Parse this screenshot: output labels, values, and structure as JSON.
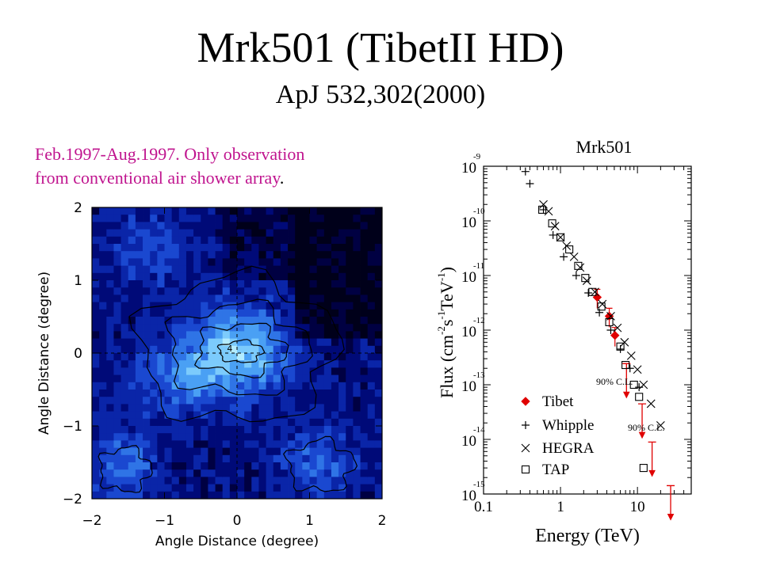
{
  "slide": {
    "title": "Mrk501 (TibetII HD)",
    "subtitle": "ApJ 532,302(2000)",
    "note_line1": "Feb.1997-Aug.1997.  Only observation",
    "note_line2": "from conventional air shower array",
    "note_period": "."
  },
  "colors": {
    "note_text": "#c0158f",
    "tibet": "#e00000",
    "map_low": "#000010",
    "map_high": "#a8f0ff"
  },
  "chart_data": [
    {
      "type": "heatmap",
      "title": "",
      "xlabel": "Angle Distance (degree)",
      "ylabel": "Angle Distance (degree)",
      "xlim": [
        -2,
        2
      ],
      "ylim": [
        -2,
        2
      ],
      "x_ticks": [
        "-2",
        "-1",
        "0",
        "1",
        "2"
      ],
      "y_ticks": [
        "2",
        "1",
        "0",
        "-1",
        "-2"
      ],
      "peak_label": "4",
      "description_of_values": "significance map centered at (0,0); contour levels 1-4"
    },
    {
      "type": "scatter",
      "title": "Mrk501",
      "xlabel": "Energy (TeV)",
      "ylabel_parts": [
        "Flux (cm",
        "-2",
        "s",
        "-1",
        "TeV",
        "-1",
        ")"
      ],
      "x_scale": "log",
      "y_scale": "log",
      "xlim": [
        0.1,
        50
      ],
      "ylim": [
        1e-15,
        1e-09
      ],
      "x_ticks": [
        "0.1",
        "1",
        "10"
      ],
      "y_ticks": [
        {
          "base": "10",
          "exp": "-9"
        },
        {
          "base": "10",
          "exp": "-10"
        },
        {
          "base": "10",
          "exp": "-11"
        },
        {
          "base": "10",
          "exp": "-12"
        },
        {
          "base": "10",
          "exp": "-13"
        },
        {
          "base": "10",
          "exp": "-14"
        },
        {
          "base": "10",
          "exp": "-15"
        }
      ],
      "annotations": [
        "90% C.L.",
        "90% C.L."
      ],
      "legend_position": "bottom-left",
      "series": [
        {
          "name": "Tibet",
          "marker": "diamond",
          "points": [
            [
              3.0,
              4e-12
            ],
            [
              4.3,
              1.8e-12
            ],
            [
              5.1,
              8e-13
            ]
          ],
          "upper_limits": [
            [
              7.2,
              6e-14
            ],
            [
              11.5,
              1.1e-14
            ],
            [
              15.5,
              2.2e-15
            ],
            [
              27.0,
              3.5e-16
            ]
          ]
        },
        {
          "name": "Whipple",
          "marker": "plus",
          "points": [
            [
              0.35,
              8e-10
            ],
            [
              0.4,
              4.8e-10
            ],
            [
              0.6,
              1.6e-10
            ],
            [
              0.8,
              5.5e-11
            ],
            [
              1.1,
              2.2e-11
            ],
            [
              1.6,
              1e-11
            ],
            [
              2.3,
              4.8e-12
            ],
            [
              3.2,
              2.1e-12
            ],
            [
              4.5,
              1e-12
            ],
            [
              6.0,
              4.5e-13
            ],
            [
              8.0,
              2e-13
            ],
            [
              10.5,
              9e-14
            ]
          ]
        },
        {
          "name": "HEGRA",
          "marker": "x",
          "points": [
            [
              0.6,
              2e-10
            ],
            [
              0.7,
              1.5e-10
            ],
            [
              0.85,
              8e-11
            ],
            [
              1.0,
              5e-11
            ],
            [
              1.2,
              3.5e-11
            ],
            [
              1.5,
              2.2e-11
            ],
            [
              1.8,
              1.4e-11
            ],
            [
              2.2,
              8e-12
            ],
            [
              2.8,
              5e-12
            ],
            [
              3.5,
              3e-12
            ],
            [
              4.5,
              1.8e-12
            ],
            [
              5.5,
              1.1e-12
            ],
            [
              6.8,
              6e-13
            ],
            [
              8.3,
              3.4e-13
            ],
            [
              10.0,
              1.9e-13
            ],
            [
              12.0,
              1e-13
            ],
            [
              15.0,
              4.5e-14
            ],
            [
              20.0,
              1.8e-14
            ]
          ]
        },
        {
          "name": "TAP",
          "marker": "square",
          "points": [
            [
              0.58,
              1.6e-10
            ],
            [
              0.78,
              9e-11
            ],
            [
              1.0,
              5e-11
            ],
            [
              1.3,
              3e-11
            ],
            [
              1.7,
              1.5e-11
            ],
            [
              2.1,
              9e-12
            ],
            [
              2.6,
              5e-12
            ],
            [
              3.4,
              2.7e-12
            ],
            [
              4.3,
              1.4e-12
            ],
            [
              6.0,
              5e-13
            ],
            [
              7.0,
              2.3e-13
            ],
            [
              9.0,
              1e-13
            ],
            [
              10.5,
              6e-14
            ],
            [
              12.0,
              3e-15
            ]
          ]
        }
      ]
    }
  ]
}
